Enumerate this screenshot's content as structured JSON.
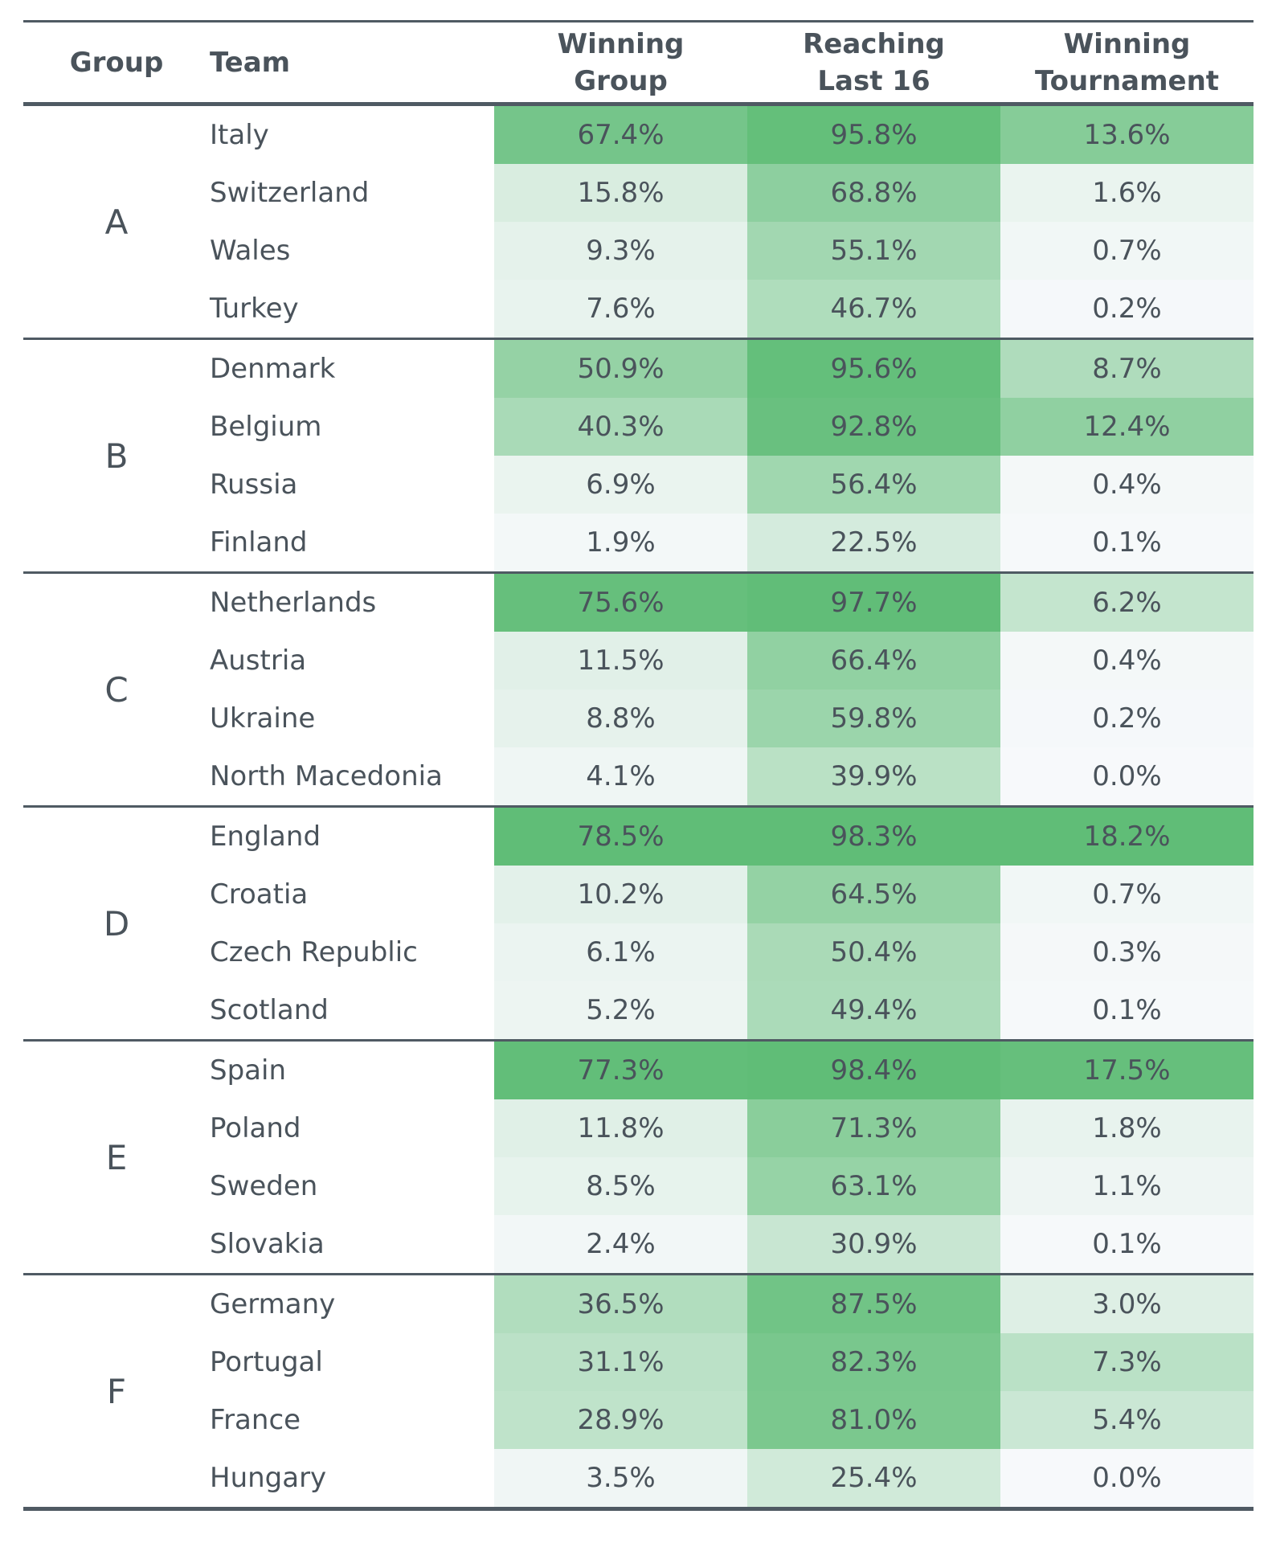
{
  "chart_data": {
    "type": "table",
    "columns": [
      "Group",
      "Team",
      "Winning Group",
      "Reaching Last 16",
      "Winning Tournament"
    ],
    "header_lines": {
      "group": "Group",
      "team": "Team",
      "winning_group": [
        "Winning",
        "Group"
      ],
      "reaching_last_16": [
        "Reaching",
        "Last 16"
      ],
      "winning_tournament": [
        "Winning",
        "Tournament"
      ]
    },
    "colors": {
      "heat_low": "#f7f9fb",
      "heat_high": "#60bd77",
      "rule": "#4f5a63",
      "text": "#4a535b"
    },
    "groups": [
      {
        "group": "A",
        "teams": [
          {
            "team": "Italy",
            "winning_group": "67.4%",
            "reaching_last_16": "95.8%",
            "winning_tournament": "13.6%"
          },
          {
            "team": "Switzerland",
            "winning_group": "15.8%",
            "reaching_last_16": "68.8%",
            "winning_tournament": "1.6%"
          },
          {
            "team": "Wales",
            "winning_group": "9.3%",
            "reaching_last_16": "55.1%",
            "winning_tournament": "0.7%"
          },
          {
            "team": "Turkey",
            "winning_group": "7.6%",
            "reaching_last_16": "46.7%",
            "winning_tournament": "0.2%"
          }
        ]
      },
      {
        "group": "B",
        "teams": [
          {
            "team": "Denmark",
            "winning_group": "50.9%",
            "reaching_last_16": "95.6%",
            "winning_tournament": "8.7%"
          },
          {
            "team": "Belgium",
            "winning_group": "40.3%",
            "reaching_last_16": "92.8%",
            "winning_tournament": "12.4%"
          },
          {
            "team": "Russia",
            "winning_group": "6.9%",
            "reaching_last_16": "56.4%",
            "winning_tournament": "0.4%"
          },
          {
            "team": "Finland",
            "winning_group": "1.9%",
            "reaching_last_16": "22.5%",
            "winning_tournament": "0.1%"
          }
        ]
      },
      {
        "group": "C",
        "teams": [
          {
            "team": "Netherlands",
            "winning_group": "75.6%",
            "reaching_last_16": "97.7%",
            "winning_tournament": "6.2%"
          },
          {
            "team": "Austria",
            "winning_group": "11.5%",
            "reaching_last_16": "66.4%",
            "winning_tournament": "0.4%"
          },
          {
            "team": "Ukraine",
            "winning_group": "8.8%",
            "reaching_last_16": "59.8%",
            "winning_tournament": "0.2%"
          },
          {
            "team": "North Macedonia",
            "winning_group": "4.1%",
            "reaching_last_16": "39.9%",
            "winning_tournament": "0.0%"
          }
        ]
      },
      {
        "group": "D",
        "teams": [
          {
            "team": "England",
            "winning_group": "78.5%",
            "reaching_last_16": "98.3%",
            "winning_tournament": "18.2%"
          },
          {
            "team": "Croatia",
            "winning_group": "10.2%",
            "reaching_last_16": "64.5%",
            "winning_tournament": "0.7%"
          },
          {
            "team": "Czech Republic",
            "winning_group": "6.1%",
            "reaching_last_16": "50.4%",
            "winning_tournament": "0.3%"
          },
          {
            "team": "Scotland",
            "winning_group": "5.2%",
            "reaching_last_16": "49.4%",
            "winning_tournament": "0.1%"
          }
        ]
      },
      {
        "group": "E",
        "teams": [
          {
            "team": "Spain",
            "winning_group": "77.3%",
            "reaching_last_16": "98.4%",
            "winning_tournament": "17.5%"
          },
          {
            "team": "Poland",
            "winning_group": "11.8%",
            "reaching_last_16": "71.3%",
            "winning_tournament": "1.8%"
          },
          {
            "team": "Sweden",
            "winning_group": "8.5%",
            "reaching_last_16": "63.1%",
            "winning_tournament": "1.1%"
          },
          {
            "team": "Slovakia",
            "winning_group": "2.4%",
            "reaching_last_16": "30.9%",
            "winning_tournament": "0.1%"
          }
        ]
      },
      {
        "group": "F",
        "teams": [
          {
            "team": "Germany",
            "winning_group": "36.5%",
            "reaching_last_16": "87.5%",
            "winning_tournament": "3.0%"
          },
          {
            "team": "Portugal",
            "winning_group": "31.1%",
            "reaching_last_16": "82.3%",
            "winning_tournament": "7.3%"
          },
          {
            "team": "France",
            "winning_group": "28.9%",
            "reaching_last_16": "81.0%",
            "winning_tournament": "5.4%"
          },
          {
            "team": "Hungary",
            "winning_group": "3.5%",
            "reaching_last_16": "25.4%",
            "winning_tournament": "0.0%"
          }
        ]
      }
    ]
  }
}
